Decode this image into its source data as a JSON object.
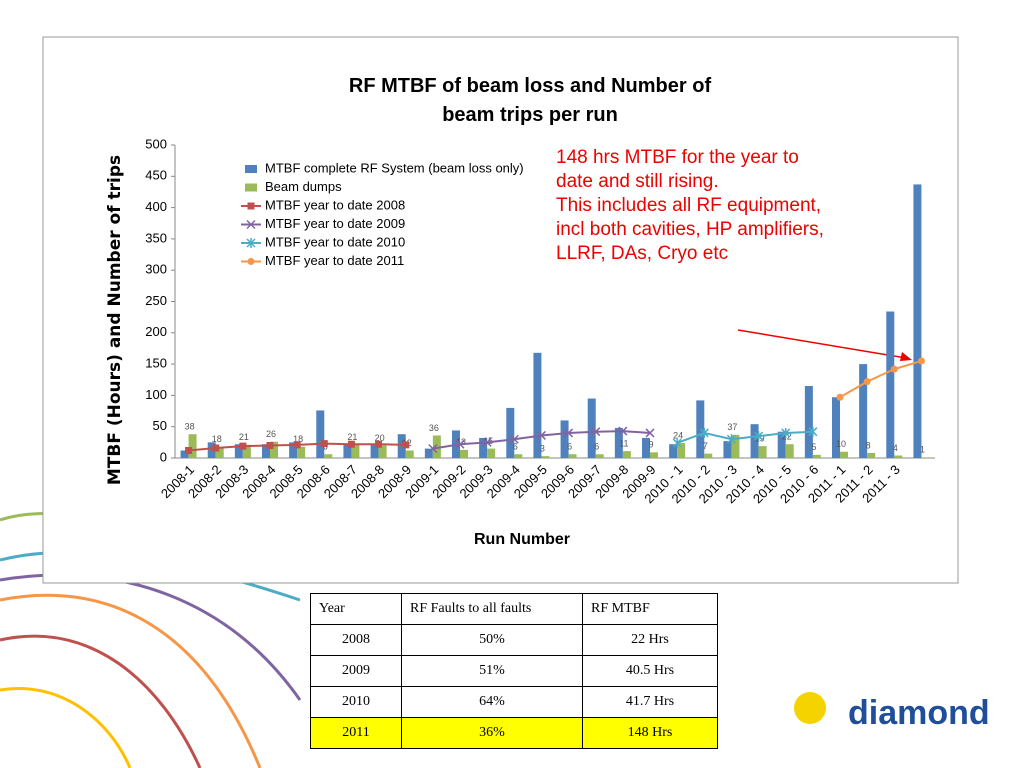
{
  "chart_data": {
    "type": "bar",
    "title": "RF MTBF of beam loss and Number of beam trips per run",
    "y_label": "MTBF (Hours) and Number of trips",
    "x_label": "Run Number",
    "categories": [
      "2008-1",
      "2008-2",
      "2008-3",
      "2008-4",
      "2008-5",
      "2008-6",
      "2008-7",
      "2008-8",
      "2008-9",
      "2009-1",
      "2009-2",
      "2009-3",
      "2009-4",
      "2009-5",
      "2009-6",
      "2009-7",
      "2009-8",
      "2009-9",
      "2010 - 1",
      "2010 - 2",
      "2010 - 3",
      "2010 - 4",
      "2010 - 5",
      "2010 - 6",
      "2011 - 1",
      "2011 - 2",
      "2011 - 3",
      null
    ],
    "ylim": [
      0,
      500
    ],
    "yticks": [
      0,
      50,
      100,
      150,
      200,
      250,
      300,
      350,
      400,
      450,
      500
    ],
    "series": [
      {
        "name": "MTBF complete RF System (beam loss only)",
        "kind": "bar",
        "color": "#4f81bd",
        "values": [
          12,
          25,
          22,
          22,
          25,
          76,
          22,
          22,
          38,
          15,
          44,
          32,
          80,
          168,
          60,
          95,
          48,
          32,
          22,
          92,
          27,
          54,
          42,
          115,
          97,
          150,
          234,
          437
        ]
      },
      {
        "name": "Beam dumps",
        "kind": "bar",
        "color": "#9bbb59",
        "labels": true,
        "values": [
          38,
          18,
          21,
          26,
          18,
          6,
          21,
          20,
          12,
          36,
          13,
          15,
          6,
          3,
          6,
          6,
          11,
          9,
          24,
          7,
          37,
          19,
          22,
          5,
          10,
          8,
          4,
          1
        ]
      },
      {
        "name": "MTBF year to date 2008",
        "kind": "line",
        "marker": "square",
        "color": "#c0504d",
        "values": [
          12,
          16,
          19,
          20,
          21,
          23,
          22,
          22,
          21,
          null,
          null,
          null,
          null,
          null,
          null,
          null,
          null,
          null,
          null,
          null,
          null,
          null,
          null,
          null,
          null,
          null,
          null,
          null
        ]
      },
      {
        "name": "MTBF year to date 2009",
        "kind": "line",
        "marker": "x",
        "color": "#8064a2",
        "values": [
          null,
          null,
          null,
          null,
          null,
          null,
          null,
          null,
          null,
          15,
          22,
          25,
          30,
          36,
          40,
          42,
          43,
          40,
          null,
          null,
          null,
          null,
          null,
          null,
          null,
          null,
          null,
          null
        ]
      },
      {
        "name": "MTBF year to date 2010",
        "kind": "line",
        "marker": "star",
        "color": "#4bacc6",
        "values": [
          null,
          null,
          null,
          null,
          null,
          null,
          null,
          null,
          null,
          null,
          null,
          null,
          null,
          null,
          null,
          null,
          null,
          null,
          24,
          40,
          30,
          35,
          40,
          42,
          null,
          null,
          null,
          null
        ]
      },
      {
        "name": "MTBF year to date 2011",
        "kind": "line",
        "marker": "circle",
        "color": "#f79646",
        "values": [
          null,
          null,
          null,
          null,
          null,
          null,
          null,
          null,
          null,
          null,
          null,
          null,
          null,
          null,
          null,
          null,
          null,
          null,
          null,
          null,
          null,
          null,
          null,
          null,
          97,
          122,
          142,
          155
        ]
      }
    ],
    "annotation": [
      "148 hrs MTBF for the year to",
      "date and still rising.",
      "This includes all RF equipment,",
      "incl both cavities, HP amplifiers,",
      "LLRF, DAs, Cryo etc"
    ]
  },
  "table": {
    "header": [
      "Year",
      "RF Faults to all faults",
      "RF MTBF"
    ],
    "rows": [
      [
        "2008",
        "50%",
        "22 Hrs"
      ],
      [
        "2009",
        "51%",
        "40.5 Hrs"
      ],
      [
        "2010",
        "64%",
        "41.7 Hrs"
      ],
      [
        "2011",
        "36%",
        "148 Hrs"
      ]
    ]
  },
  "logo": "diamond"
}
